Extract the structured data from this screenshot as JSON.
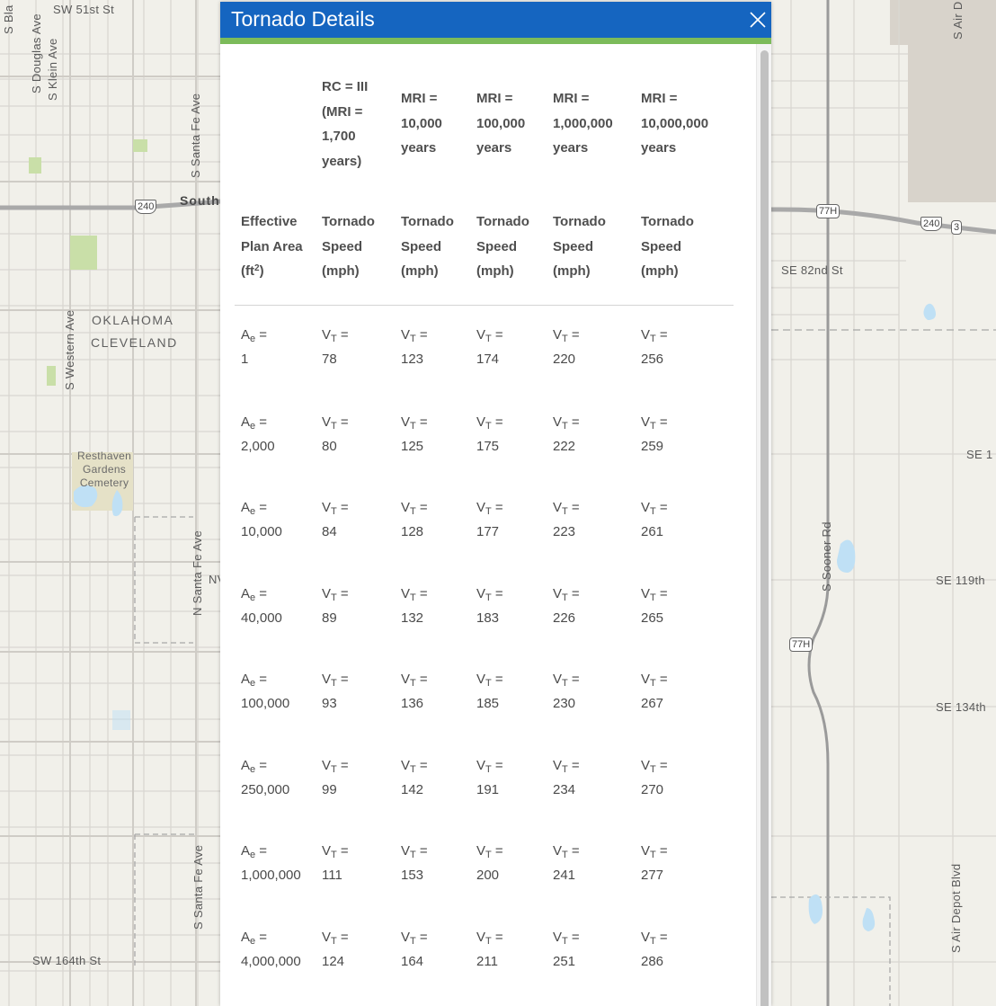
{
  "popup": {
    "title": "Tornado Details",
    "close_icon": "close-icon",
    "header_color": "#1565c0",
    "accent_color": "#7cbb5a"
  },
  "table": {
    "header_top": [
      "",
      "RC = III (MRI = 1,700 years)",
      "MRI = 10,000 years",
      "MRI = 100,000 years",
      "MRI = 1,000,000 years",
      "MRI = 10,000,000 years"
    ],
    "header_top_lines": [
      [],
      [
        "RC = III",
        "(MRI =",
        "1,700",
        "years)"
      ],
      [
        "MRI =",
        "10,000",
        "years"
      ],
      [
        "MRI =",
        "100,000",
        "years"
      ],
      [
        "MRI =",
        "1,000,000",
        "years"
      ],
      [
        "MRI =",
        "10,000,000",
        "years"
      ]
    ],
    "header_bottom": [
      {
        "lines": [
          "Effective",
          "Plan Area",
          "(ft"
        ],
        "sup": "2",
        "tail": ")"
      },
      {
        "lines": [
          "Tornado",
          "Speed",
          "(mph)"
        ]
      },
      {
        "lines": [
          "Tornado",
          "Speed",
          "(mph)"
        ]
      },
      {
        "lines": [
          "Tornado",
          "Speed",
          "(mph)"
        ]
      },
      {
        "lines": [
          "Tornado",
          "Speed",
          "(mph)"
        ]
      },
      {
        "lines": [
          "Tornado",
          "Speed",
          "(mph)"
        ]
      }
    ],
    "area_symbol": {
      "base": "A",
      "sub": "e",
      "suffix": " ="
    },
    "speed_symbol": {
      "base": "V",
      "sub": "T",
      "suffix": " ="
    },
    "rows": [
      {
        "area": "1",
        "speeds": [
          "78",
          "123",
          "174",
          "220",
          "256"
        ]
      },
      {
        "area": "2,000",
        "speeds": [
          "80",
          "125",
          "175",
          "222",
          "259"
        ]
      },
      {
        "area": "10,000",
        "speeds": [
          "84",
          "128",
          "177",
          "223",
          "261"
        ]
      },
      {
        "area": "40,000",
        "speeds": [
          "89",
          "132",
          "183",
          "226",
          "265"
        ]
      },
      {
        "area": "100,000",
        "speeds": [
          "93",
          "136",
          "185",
          "230",
          "267"
        ]
      },
      {
        "area": "250,000",
        "speeds": [
          "99",
          "142",
          "191",
          "234",
          "270"
        ]
      },
      {
        "area": "1,000,000",
        "speeds": [
          "111",
          "153",
          "200",
          "241",
          "277"
        ]
      },
      {
        "area": "4,000,000",
        "speeds": [
          "124",
          "164",
          "211",
          "251",
          "286"
        ]
      }
    ]
  },
  "map": {
    "labels": [
      {
        "text": "SW 51st St"
      },
      {
        "text": "S Bla"
      },
      {
        "text": "S Douglas Ave"
      },
      {
        "text": "S Klein Ave"
      },
      {
        "text": "S Santa Fe Ave"
      },
      {
        "text": "South"
      },
      {
        "text": "S Western Ave"
      },
      {
        "text": "OKLAHOMA"
      },
      {
        "text": "CLEVELAND"
      },
      {
        "text": "Resthaven\nGardens\nCemetery"
      },
      {
        "text": "N Santa Fe Ave"
      },
      {
        "text": "NV"
      },
      {
        "text": "S Santa Fe Ave"
      },
      {
        "text": "SW 164th St"
      },
      {
        "text": "SE 82nd St"
      },
      {
        "text": "S Air D"
      },
      {
        "text": "SE 1"
      },
      {
        "text": "S Sooner Rd"
      },
      {
        "text": "SE 119th"
      },
      {
        "text": "SE 134th"
      },
      {
        "text": "S Air Depot Blvd"
      }
    ],
    "shields": [
      {
        "text": "240"
      },
      {
        "text": "77H"
      },
      {
        "text": "240"
      },
      {
        "text": "3"
      },
      {
        "text": "77H"
      }
    ]
  }
}
